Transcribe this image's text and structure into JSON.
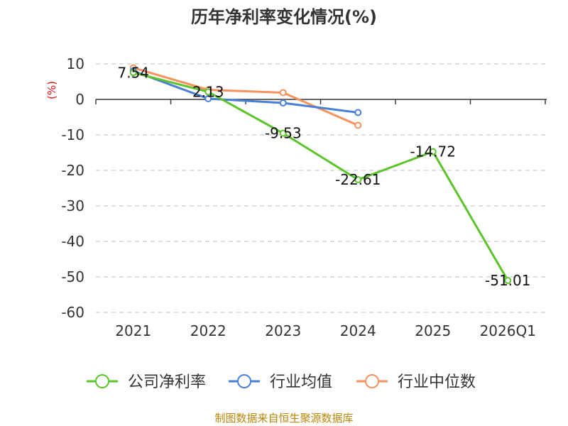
{
  "chart_data": {
    "type": "line",
    "title": "历年净利率变化情况(%)",
    "ylabel": "(%)",
    "xlabel": "",
    "categories": [
      "2021",
      "2022",
      "2023",
      "2024",
      "2025",
      "2026Q1"
    ],
    "ylim": [
      -60,
      10
    ],
    "yticks": [
      10,
      0,
      -10,
      -20,
      -30,
      -40,
      -50,
      -60
    ],
    "ytick_labels": [
      "10",
      "0",
      "-10",
      "-20",
      "-30",
      "-40",
      "-50",
      "-60"
    ],
    "grid": true,
    "legend_position": "bottom",
    "series": [
      {
        "name": "公司净利率",
        "color": "#5cc42a",
        "values": [
          7.54,
          2.13,
          -9.53,
          -22.61,
          -14.72,
          -51.01
        ],
        "labels": [
          "7.54",
          "2.13",
          "-9.53",
          "-22.61",
          "-14.72",
          "-51.01"
        ]
      },
      {
        "name": "行业均值",
        "color": "#4a7fd8",
        "values": [
          8.0,
          0.2,
          -1.0,
          -3.7,
          null,
          null
        ]
      },
      {
        "name": "行业中位数",
        "color": "#f5925e",
        "values": [
          8.9,
          2.7,
          1.9,
          -7.3,
          null,
          null
        ]
      }
    ]
  },
  "source_note": "制图数据来自恒生聚源数据库"
}
